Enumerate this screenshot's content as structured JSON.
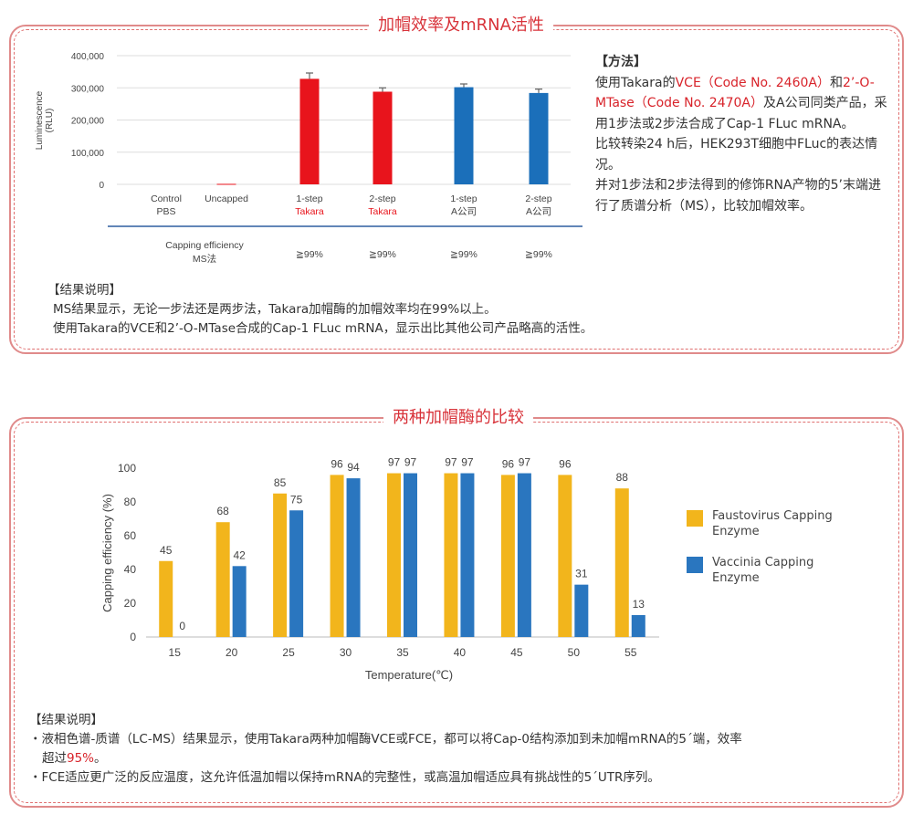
{
  "section1": {
    "title": "加帽效率及mRNA活性",
    "method": {
      "heading": "【方法】",
      "p1_a": "使用Takara的",
      "p1_b": "VCE（Code No. 2460A）",
      "p1_c": "和",
      "p1_d": "2’-O-MTase（Code No. 2470A）",
      "p1_e": "及A公司同类产品，采用1步法或2步法合成了Cap-1 FLuc mRNA。",
      "p2": "比较转染24 h后，HEK293T细胞中FLuc的表达情况。",
      "p3": "并对1步法和2步法得到的修饰RNA产物的5’末端进行了质谱分析（MS），比较加帽效率。"
    },
    "results": {
      "heading": "【结果说明】",
      "lines": [
        "MS结果显示，无论一步法还是两步法，Takara加帽酶的加帽效率均在99%以上。",
        "使用Takara的VCE和2’-O-MTase合成的Cap-1 FLuc mRNA，显示出比其他公司产品略高的活性。"
      ]
    },
    "efficiency_row": {
      "label1": "Capping efficiency",
      "label2": "MS法",
      "values": [
        "≧99%",
        "≧99%",
        "≧99%",
        "≧99%"
      ]
    }
  },
  "section2": {
    "title": "两种加帽酶的比较",
    "results": {
      "heading": "【结果说明】",
      "b1_a": "・液相色谱-质谱（LC-MS）结果显示，使用Takara两种加帽酶VCE或FCE，都可以将Cap-0结构添加到未加帽mRNA的5´端，效率",
      "b1_b": "超过",
      "b1_c": "95%",
      "b1_d": "。",
      "b2": "・FCE适应更广泛的反应温度，这允许低温加帽以保持mRNA的完整性，或高温加帽适应具有挑战性的5´UTR序列。"
    }
  },
  "chart_data": [
    {
      "type": "bar",
      "title": "",
      "ylabel": "Luminescence (RLU)",
      "ylabel_lines": [
        "Luminescence",
        "(RLU)"
      ],
      "ylim": [
        0,
        400000
      ],
      "yticks": [
        "0",
        "100,000",
        "200,000",
        "300,000",
        "400,000"
      ],
      "categories": [
        [
          "Control",
          "PBS"
        ],
        [
          "Uncapped",
          ""
        ],
        [
          "1-step",
          "Takara"
        ],
        [
          "2-step",
          "Takara"
        ],
        [
          "1-step",
          "A公司"
        ],
        [
          "2-step",
          "A公司"
        ]
      ],
      "values": [
        0,
        1500,
        328000,
        288000,
        302000,
        284000
      ],
      "errors": [
        0,
        0,
        18000,
        12000,
        10000,
        12000
      ],
      "colors": [
        "#e8141c",
        "#e8141c",
        "#e8141c",
        "#e8141c",
        "#1b6fba",
        "#1b6fba"
      ],
      "label_red": [
        false,
        false,
        true,
        true,
        false,
        false
      ],
      "grid": true
    },
    {
      "type": "bar",
      "title": "",
      "xlabel": "Temperature(℃)",
      "ylabel": "Capping efficiency (%)",
      "ylim": [
        0,
        100
      ],
      "yticks": [
        "0",
        "20",
        "40",
        "60",
        "80",
        "100"
      ],
      "categories": [
        "15",
        "20",
        "25",
        "30",
        "35",
        "40",
        "45",
        "50",
        "55"
      ],
      "series": [
        {
          "name": "Faustovirus Capping Enzyme",
          "color": "#f2b51c",
          "values": [
            45,
            68,
            85,
            96,
            97,
            97,
            96,
            96,
            88
          ]
        },
        {
          "name": "Vaccinia Capping Enzyme",
          "color": "#2a76bf",
          "values": [
            0,
            42,
            75,
            94,
            97,
            97,
            97,
            31,
            13
          ]
        }
      ],
      "legend_lines": [
        [
          "Faustovirus Capping",
          "Enzyme"
        ],
        [
          "Vaccinia  Capping",
          "Enzyme"
        ]
      ],
      "legend_position": "right",
      "grid": false
    }
  ]
}
